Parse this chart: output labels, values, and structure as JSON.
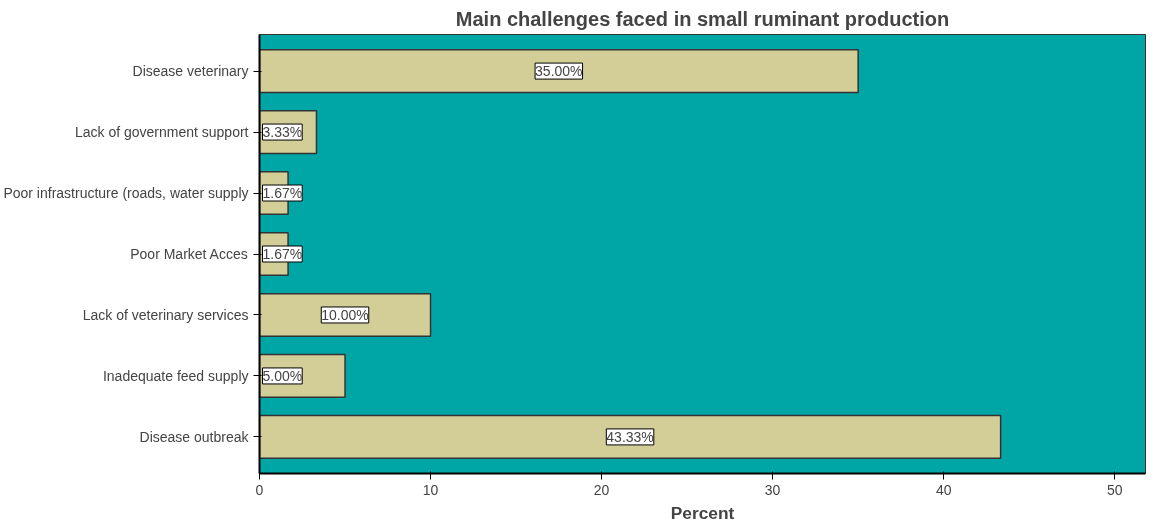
{
  "chart_data": {
    "type": "bar",
    "orientation": "horizontal",
    "title": "Main challenges faced in small ruminant production",
    "xlabel": "Percent",
    "categories": [
      "Disease veterinary",
      "Lack of government support",
      "Poor infrastructure (roads, water supply",
      "Poor Market Acces",
      "Lack of veterinary services",
      "Inadequate feed supply",
      "Disease outbreak"
    ],
    "values": [
      35.0,
      3.33,
      1.67,
      1.67,
      10.0,
      5.0,
      43.33
    ],
    "value_labels": [
      "35.00%",
      "3.33%",
      "1.67%",
      "1.67%",
      "10.00%",
      "5.00%",
      "43.33%"
    ],
    "color": "#d3ce97",
    "xlim": [
      0,
      51.8
    ],
    "xticks": [
      0,
      10,
      20,
      30,
      40,
      50
    ],
    "grid": false
  }
}
